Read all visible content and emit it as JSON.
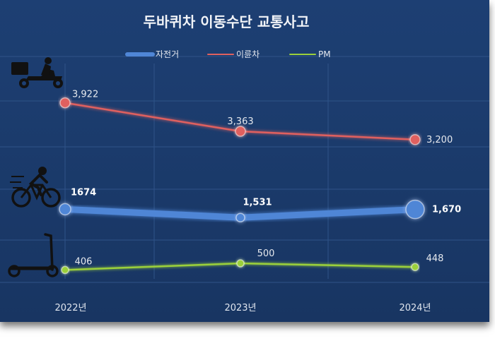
{
  "chart_data": {
    "type": "line",
    "title": "두바퀴차 이동수단 교통사고",
    "categories": [
      "2022년",
      "2023년",
      "2024년"
    ],
    "series": [
      {
        "name": "자전거",
        "values": [
          1674,
          1531,
          1670
        ],
        "labels": [
          "1674",
          "1,531",
          "1,670"
        ],
        "color": "#4f86d6"
      },
      {
        "name": "이륜차",
        "values": [
          3922,
          3363,
          3200
        ],
        "labels": [
          "3,922",
          "3,363",
          "3,200"
        ],
        "color": "#e0615f"
      },
      {
        "name": "PM",
        "values": [
          406,
          500,
          448
        ],
        "labels": [
          "406",
          "500",
          "448"
        ],
        "color": "#9bd03b"
      }
    ],
    "legend_position": "top",
    "grid": true,
    "icons": [
      "delivery-motorcycle-icon",
      "cyclist-icon",
      "electric-scooter-icon"
    ]
  }
}
